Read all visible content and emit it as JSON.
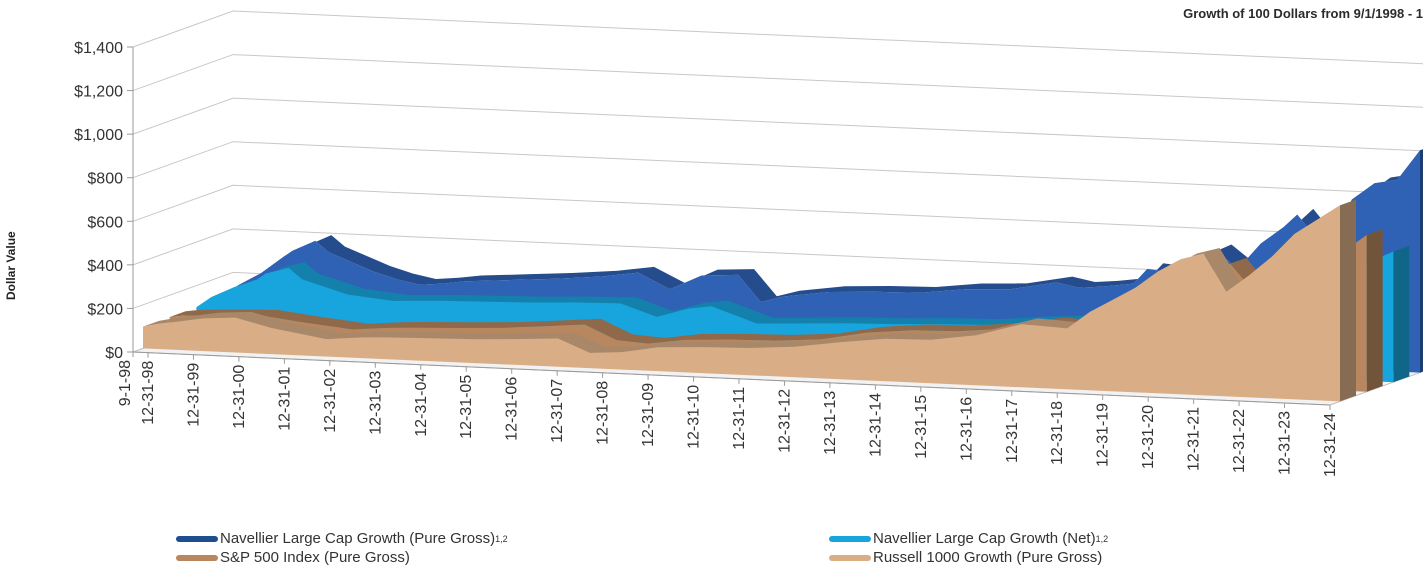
{
  "chart_data": {
    "type": "area",
    "title": "Growth of 100 Dollars from 9/1/1998 - 1",
    "ylabel": "Dollar Value",
    "ylim": [
      0,
      1400
    ],
    "y_ticks": [
      "$0",
      "$200",
      "$400",
      "$600",
      "$800",
      "$1,000",
      "$1,200",
      "$1,400"
    ],
    "y_tick_values": [
      0,
      200,
      400,
      600,
      800,
      1000,
      1200,
      1400
    ],
    "categories": [
      "9-1-98",
      "12-31-98",
      "12-31-99",
      "12-31-00",
      "12-31-01",
      "12-31-02",
      "12-31-03",
      "12-31-04",
      "12-31-05",
      "12-31-06",
      "12-31-07",
      "12-31-08",
      "12-31-09",
      "12-31-10",
      "12-31-11",
      "12-31-12",
      "12-31-13",
      "12-31-14",
      "12-31-15",
      "12-31-16",
      "12-31-17",
      "12-31-18",
      "12-31-19",
      "12-31-20",
      "12-31-21",
      "12-31-22",
      "12-31-23",
      "12-31-24"
    ],
    "x_values": [
      1998.67,
      1999.0,
      2000,
      2001,
      2002,
      2003,
      2004,
      2005,
      2006,
      2007,
      2008,
      2009,
      2010,
      2011,
      2012,
      2013,
      2014,
      2015,
      2016,
      2017,
      2018,
      2019,
      2020,
      2021,
      2022,
      2023,
      2024,
      2025
    ],
    "series": [
      {
        "name": "Navellier Large Cap Growth (Pure Gross)",
        "sup": "1,2",
        "color": "#2f62b5",
        "x": [
          1998.67,
          1999.0,
          1999.5,
          2000.0,
          2000.2,
          2000.7,
          2001.0,
          2001.5,
          2002.0,
          2002.5,
          2003.0,
          2003.5,
          2004.0,
          2005.0,
          2006.0,
          2007.0,
          2007.8,
          2008.5,
          2009.2,
          2010.0,
          2010.5,
          2011.0,
          2012.0,
          2013.0,
          2014.0,
          2015.0,
          2016.0,
          2017.0,
          2017.5,
          2018.0,
          2018.7,
          2019.0,
          2019.5,
          2020.0,
          2020.5,
          2021.0,
          2021.5,
          2022.0,
          2022.3,
          2022.7,
          2023.0,
          2023.5,
          2024.0,
          2024.5,
          2025.0
        ],
        "y": [
          100,
          160,
          220,
          300,
          330,
          380,
          330,
          290,
          250,
          220,
          200,
          210,
          225,
          240,
          255,
          275,
          300,
          230,
          300,
          310,
          190,
          220,
          250,
          260,
          265,
          290,
          300,
          340,
          320,
          330,
          350,
          420,
          410,
          470,
          520,
          440,
          560,
          640,
          700,
          600,
          560,
          780,
          860,
          880,
          1020
        ]
      },
      {
        "name": "Navellier Large Cap Growth (Net)",
        "sup": "1,2",
        "color": "#18a5dd",
        "x": [
          1998.67,
          1999.0,
          1999.5,
          2000.0,
          2000.2,
          2000.7,
          2001.0,
          2002.0,
          2003.0,
          2004.0,
          2005.0,
          2006.0,
          2007.0,
          2008.0,
          2008.8,
          2009.5,
          2010.0,
          2011.0,
          2012.0,
          2013.0,
          2014.0,
          2015.0,
          2016.0,
          2017.0,
          2018.0,
          2019.0,
          2020.0,
          2021.0,
          2022.0,
          2022.5,
          2023.0,
          2024.0,
          2025.0
        ],
        "y": [
          100,
          150,
          200,
          240,
          270,
          300,
          250,
          190,
          170,
          180,
          185,
          190,
          200,
          205,
          150,
          195,
          210,
          140,
          150,
          160,
          165,
          175,
          180,
          200,
          215,
          240,
          300,
          260,
          340,
          430,
          360,
          500,
          600
        ]
      },
      {
        "name": "S&P 500 Index (Pure Gross)",
        "sup": "",
        "color": "#b8875f",
        "x": [
          1998.67,
          1999.0,
          2000.0,
          2000.7,
          2001.5,
          2002.7,
          2003.5,
          2004.0,
          2005.0,
          2006.0,
          2007.0,
          2007.8,
          2008.5,
          2009.2,
          2010.0,
          2011.0,
          2012.0,
          2013.0,
          2014.0,
          2015.0,
          2016.0,
          2017.0,
          2018.0,
          2019.0,
          2019.5,
          2020.0,
          2020.5,
          2021.0,
          2021.5,
          2022.0,
          2022.5,
          2023.0,
          2023.5,
          2024.0,
          2024.5,
          2025.0
        ],
        "y": [
          100,
          110,
          120,
          125,
          105,
          80,
          95,
          100,
          108,
          118,
          135,
          150,
          85,
          75,
          100,
          110,
          115,
          130,
          170,
          190,
          195,
          215,
          250,
          240,
          310,
          330,
          380,
          450,
          520,
          560,
          440,
          450,
          520,
          580,
          640,
          720
        ]
      },
      {
        "name": "Russell 1000 Growth (Pure Gross)",
        "sup": "",
        "color": "#d9ae87",
        "x": [
          1998.67,
          1999.0,
          2000.0,
          2000.7,
          2001.5,
          2002.7,
          2003.5,
          2004.0,
          2005.0,
          2006.0,
          2007.0,
          2007.8,
          2008.5,
          2009.2,
          2010.0,
          2011.0,
          2012.0,
          2013.0,
          2014.0,
          2015.0,
          2016.0,
          2017.0,
          2018.0,
          2019.0,
          2019.5,
          2020.0,
          2020.5,
          2021.0,
          2021.5,
          2022.0,
          2022.5,
          2023.0,
          2023.5,
          2024.0,
          2024.5,
          2025.0
        ],
        "y": [
          100,
          115,
          150,
          160,
          120,
          80,
          95,
          100,
          105,
          110,
          120,
          130,
          70,
          80,
          110,
          120,
          125,
          140,
          170,
          195,
          200,
          230,
          290,
          280,
          360,
          420,
          480,
          560,
          620,
          650,
          480,
          560,
          650,
          760,
          830,
          900
        ]
      }
    ],
    "legend_position": "bottom",
    "grid": true
  }
}
